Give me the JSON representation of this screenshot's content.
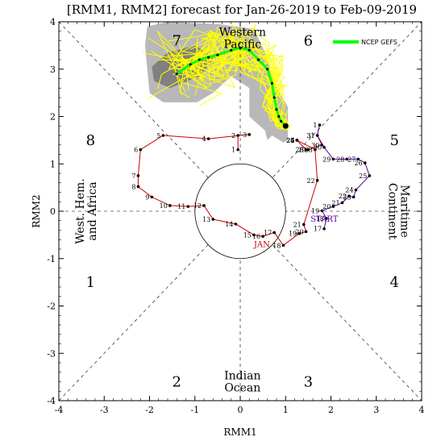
{
  "chart_data": {
    "type": "line",
    "title": "[RMM1, RMM2] forecast for Jan-26-2019 to Feb-09-2019",
    "xlabel": "RMM1",
    "ylabel": "RMM2",
    "xlim": [
      -4,
      4
    ],
    "ylim": [
      -4,
      4
    ],
    "x_ticks": [
      "-4",
      "-3",
      "-2",
      "-1",
      "0",
      "1",
      "2",
      "3",
      "4"
    ],
    "y_ticks": [
      "-4",
      "-3",
      "-2",
      "-1",
      "0",
      "1",
      "2",
      "3",
      "4"
    ],
    "phases": [
      {
        "label": "1",
        "x": -3.3,
        "y": -1.5
      },
      {
        "label": "2",
        "x": -1.4,
        "y": -3.6
      },
      {
        "label": "3",
        "x": 1.5,
        "y": -3.6
      },
      {
        "label": "4",
        "x": 3.4,
        "y": -1.5
      },
      {
        "label": "5",
        "x": 3.4,
        "y": 1.5
      },
      {
        "label": "6",
        "x": 1.5,
        "y": 3.6
      },
      {
        "label": "7",
        "x": -1.4,
        "y": 3.6
      },
      {
        "label": "8",
        "x": -3.3,
        "y": 1.5
      }
    ],
    "regions": [
      {
        "lines": [
          "Western",
          "Pacific"
        ]
      },
      {
        "lines": [
          "Indian",
          "Ocean"
        ]
      },
      {
        "lines": [
          "West. Hem.",
          "and Africa"
        ]
      },
      {
        "lines": [
          "Maritime",
          "Continent"
        ]
      }
    ],
    "annotations": {
      "start": "START",
      "month": "JAN"
    },
    "legend": {
      "label": "NCEP GEFS",
      "color": "#00ff00",
      "placement": "top-right"
    },
    "colors": {
      "observed": "#cc0000",
      "recent": "#5a00a0",
      "members": "#ffff00",
      "mean": "#00ff00",
      "spread_outer": "#b8b8b8",
      "spread_inner": "#808080"
    },
    "observed": {
      "days": [
        "1",
        "2",
        "3",
        "4",
        "5",
        "6",
        "7",
        "8",
        "9",
        "10",
        "11",
        "12",
        "13",
        "14",
        "15",
        "16",
        "17",
        "18",
        "19",
        "20",
        "21",
        "22",
        "23",
        "24",
        "25",
        "26",
        "27",
        "28",
        "29",
        "30",
        "31"
      ],
      "x": [
        -0.05,
        -0.05,
        0.2,
        -0.7,
        -1.7,
        -2.2,
        -2.25,
        -2.25,
        -1.95,
        -1.55,
        -1.15,
        -0.8,
        -0.6,
        -0.1,
        0.3,
        0.5,
        0.75,
        0.95,
        1.3,
        1.45,
        1.4,
        1.7,
        1.65,
        1.25,
        1.25,
        1.25,
        1.25,
        1.45,
        1.5,
        1.8,
        1.7
      ],
      "y": [
        1.3,
        1.6,
        1.62,
        1.53,
        1.6,
        1.3,
        0.75,
        0.52,
        0.3,
        0.12,
        0.1,
        0.12,
        -0.17,
        -0.27,
        -0.5,
        -0.53,
        -0.45,
        -0.72,
        -0.47,
        -0.43,
        -0.28,
        0.65,
        1.3,
        1.5,
        1.5,
        1.5,
        1.5,
        1.3,
        1.3,
        1.4,
        1.6
      ]
    },
    "recent": {
      "days": [
        "1",
        "31",
        "30",
        "29",
        "28",
        "27",
        "26",
        "25",
        "24",
        "23",
        "22",
        "21",
        "20",
        "19",
        "18",
        "17"
      ],
      "x": [
        1.75,
        1.7,
        1.85,
        2.05,
        2.35,
        2.6,
        2.75,
        2.85,
        2.55,
        2.5,
        2.4,
        2.25,
        2.05,
        1.8,
        1.9,
        1.85
      ],
      "y": [
        1.82,
        1.6,
        1.35,
        1.1,
        1.1,
        1.1,
        1.02,
        0.75,
        0.45,
        0.3,
        0.32,
        0.18,
        0.1,
        0.01,
        -0.15,
        -0.37
      ]
    },
    "ensemble_mean": {
      "x": [
        1.0,
        0.9,
        0.85,
        0.8,
        0.75,
        0.7,
        0.6,
        0.4,
        0.2,
        0.0,
        -0.2,
        -0.5,
        -0.7,
        -0.9,
        -1.1,
        -1.4
      ],
      "y": [
        1.8,
        1.9,
        2.0,
        2.15,
        2.4,
        2.7,
        3.0,
        3.2,
        3.4,
        3.45,
        3.4,
        3.3,
        3.25,
        3.2,
        3.1,
        2.9
      ]
    },
    "start_point": {
      "x": 1.0,
      "y": 1.8
    }
  }
}
